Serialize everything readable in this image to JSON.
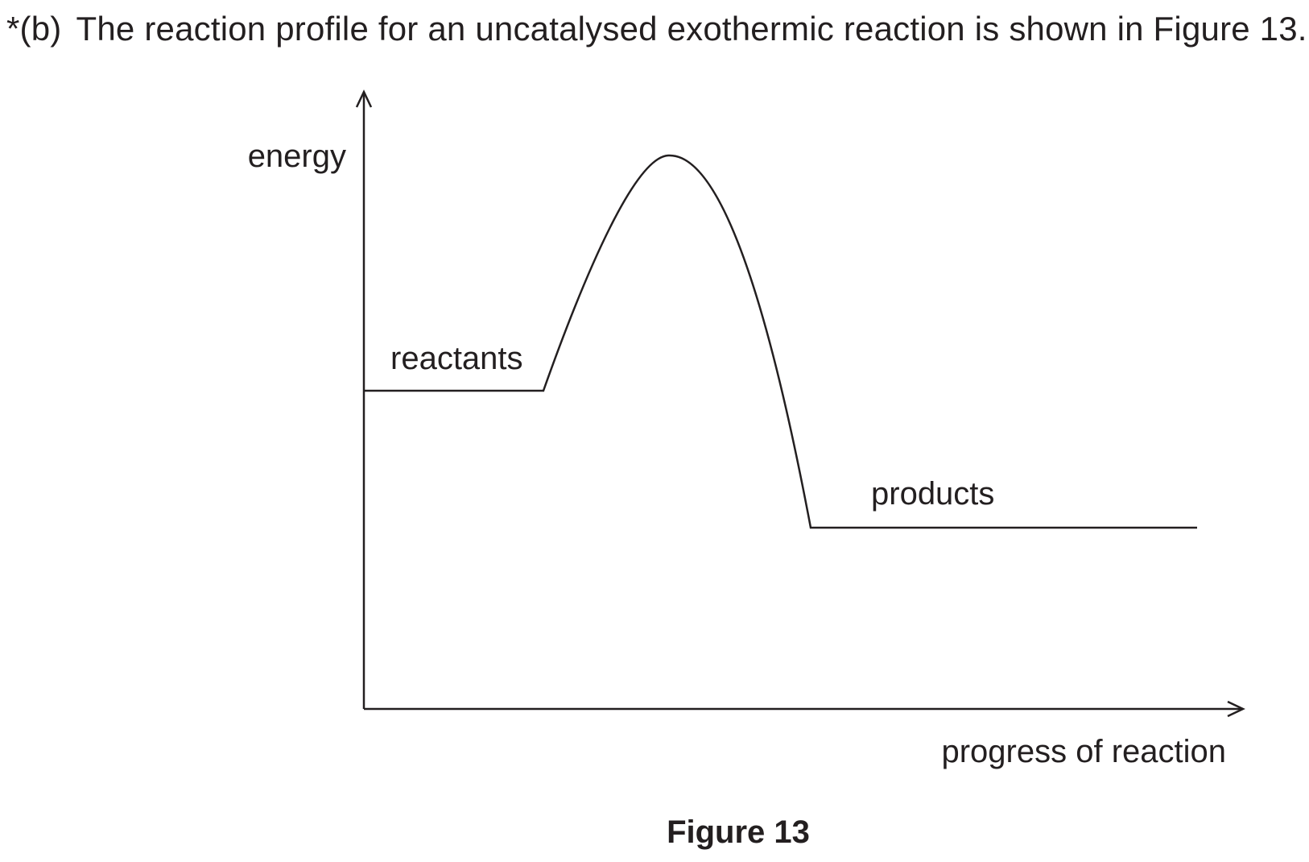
{
  "question": {
    "number": "*(b)",
    "text": "The reaction profile for an uncatalysed exothermic reaction is shown in Figure 13."
  },
  "diagram": {
    "y_axis_label": "energy",
    "x_axis_label": "progress of reaction",
    "labels": {
      "reactants": "reactants",
      "products": "products"
    },
    "caption": "Figure 13"
  },
  "colors": {
    "ink": "#231f20",
    "background": "#ffffff"
  }
}
